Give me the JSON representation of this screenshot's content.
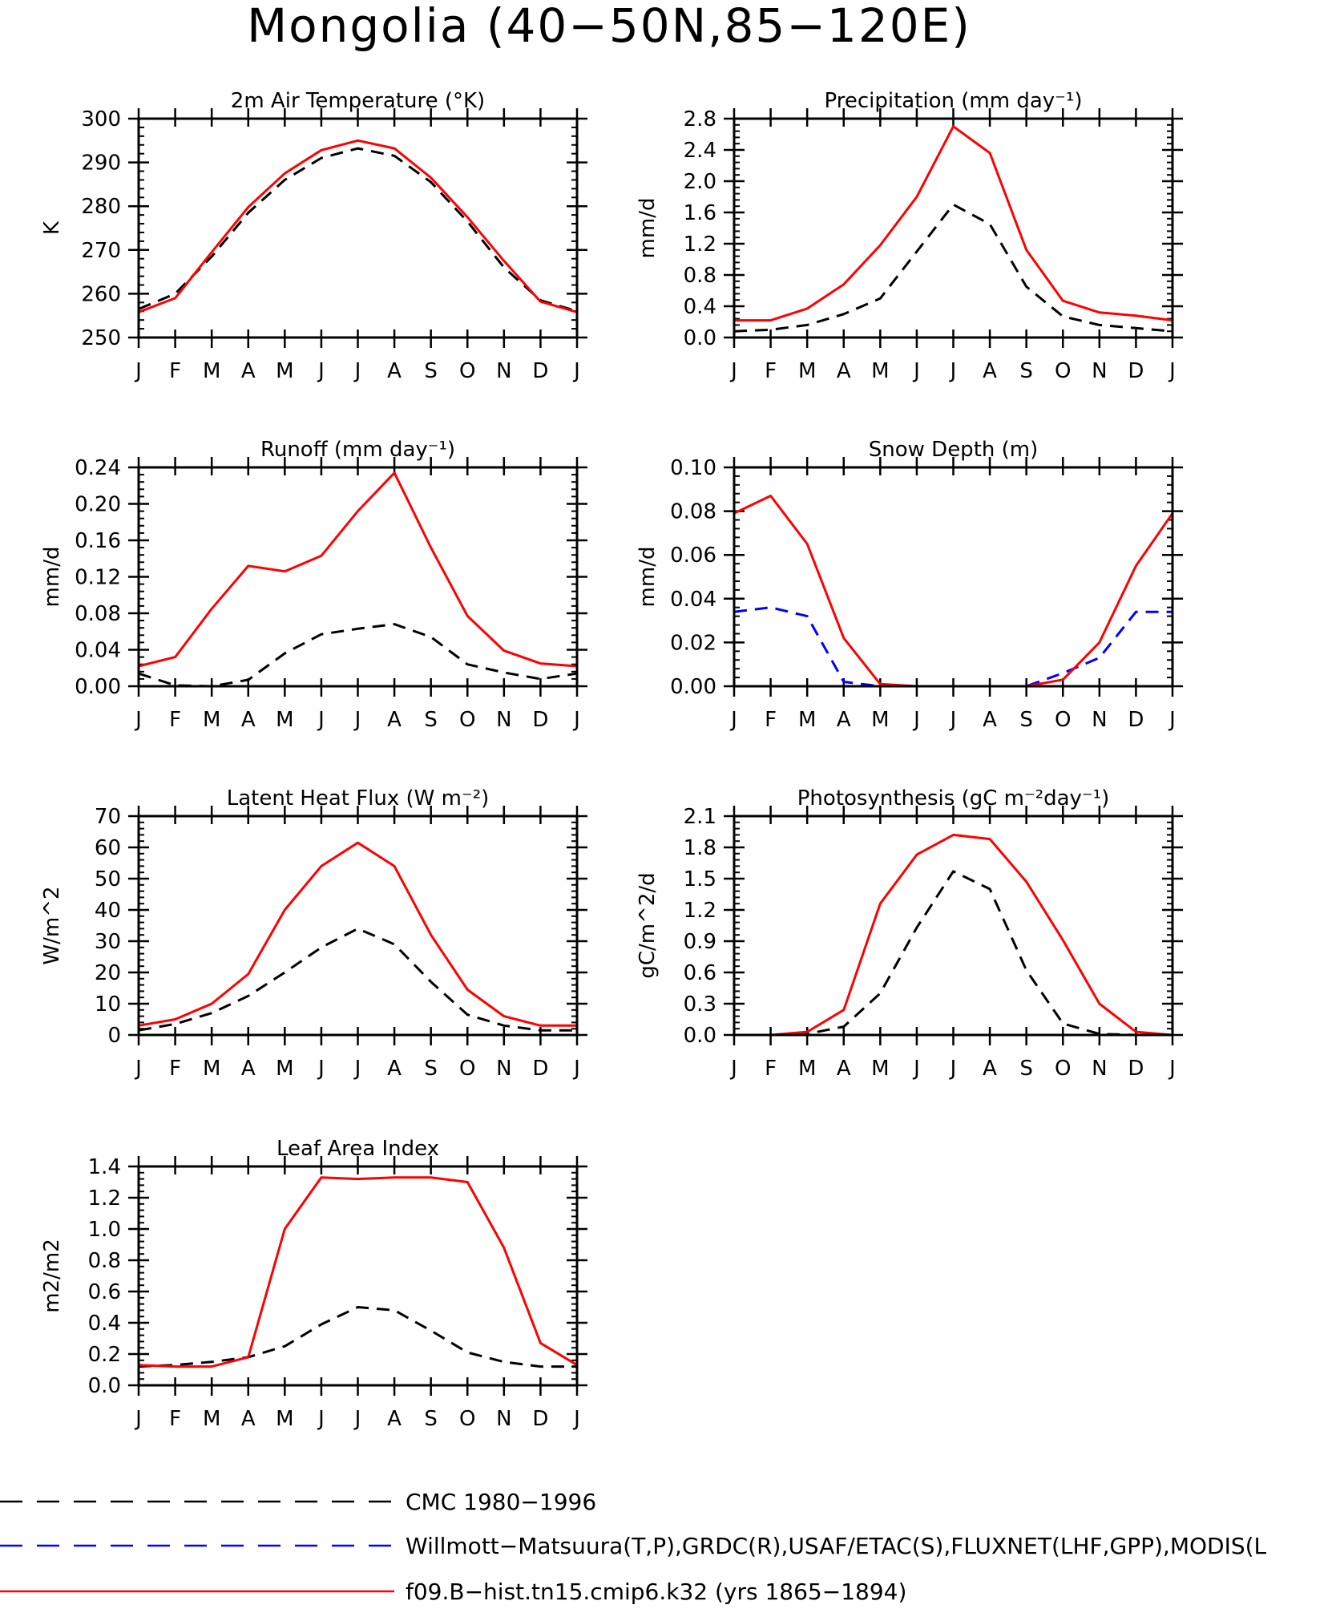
{
  "page": {
    "title": "Mongolia (40−50N,85−120E)"
  },
  "months": [
    "J",
    "F",
    "M",
    "A",
    "M",
    "J",
    "J",
    "A",
    "S",
    "O",
    "N",
    "D",
    "J"
  ],
  "colors": {
    "obs": "#000000",
    "obs2": "#0000ff",
    "model": "#ff0000"
  },
  "legend": {
    "entries": [
      {
        "label": "CMC 1980−1996",
        "color": "#000000",
        "style": "dashed"
      },
      {
        "label": "Willmott−Matsuura(T,P),GRDC(R),USAF/ETAC(S),FLUXNET(LHF,GPP),MODIS(L",
        "color": "#0000ff",
        "style": "dashed"
      },
      {
        "label": "f09.B−hist.tn15.cmip6.k32 (yrs 1865−1894)",
        "color": "#ff0000",
        "style": "solid"
      }
    ]
  },
  "chart_data": [
    {
      "type": "line",
      "title": "2m Air Temperature (°K)",
      "ylabel": "K",
      "ylim": [
        250,
        300
      ],
      "yticks": [
        250,
        260,
        270,
        280,
        290,
        300
      ],
      "ytick_labels": [
        "250",
        "260",
        "270",
        "280",
        "290",
        "300"
      ],
      "series": [
        {
          "role": "obs",
          "color": "#000000",
          "style": "dashed",
          "values": [
            256.5,
            260,
            268.5,
            278.5,
            286,
            291,
            293.2,
            291.5,
            285.5,
            276.5,
            266,
            258.5,
            256
          ]
        },
        {
          "role": "model",
          "color": "#ff0000",
          "style": "solid",
          "values": [
            255.8,
            259,
            269.5,
            279.8,
            287.5,
            292.8,
            295,
            293.2,
            286.5,
            277.5,
            267.5,
            258.2,
            255.8
          ]
        }
      ]
    },
    {
      "type": "line",
      "title": "Precipitation (mm day⁻¹)",
      "ylabel": "mm/d",
      "ylim": [
        0,
        2.8
      ],
      "yticks": [
        0,
        0.4,
        0.8,
        1.2,
        1.6,
        2.0,
        2.4,
        2.8
      ],
      "ytick_labels": [
        "0.0",
        "0.4",
        "0.8",
        "1.2",
        "1.6",
        "2.0",
        "2.4",
        "2.8"
      ],
      "series": [
        {
          "role": "obs",
          "color": "#000000",
          "style": "dashed",
          "values": [
            0.08,
            0.1,
            0.16,
            0.3,
            0.5,
            1.1,
            1.7,
            1.45,
            0.65,
            0.27,
            0.16,
            0.12,
            0.08
          ]
        },
        {
          "role": "model",
          "color": "#ff0000",
          "style": "solid",
          "values": [
            0.22,
            0.22,
            0.37,
            0.68,
            1.18,
            1.8,
            2.7,
            2.36,
            1.12,
            0.47,
            0.32,
            0.28,
            0.22
          ]
        }
      ]
    },
    {
      "type": "line",
      "title": "Runoff (mm day⁻¹)",
      "ylabel": "mm/d",
      "ylim": [
        0,
        0.24
      ],
      "yticks": [
        0,
        0.04,
        0.08,
        0.12,
        0.16,
        0.2,
        0.24
      ],
      "ytick_labels": [
        "0.00",
        "0.04",
        "0.08",
        "0.12",
        "0.16",
        "0.20",
        "0.24"
      ],
      "series": [
        {
          "role": "obs",
          "color": "#000000",
          "style": "dashed",
          "values": [
            0.014,
            0.001,
            0.0,
            0.007,
            0.036,
            0.057,
            0.063,
            0.068,
            0.054,
            0.024,
            0.015,
            0.008,
            0.014
          ]
        },
        {
          "role": "model",
          "color": "#ff0000",
          "style": "solid",
          "values": [
            0.022,
            0.032,
            0.085,
            0.132,
            0.126,
            0.143,
            0.192,
            0.234,
            0.152,
            0.077,
            0.039,
            0.025,
            0.022
          ]
        }
      ]
    },
    {
      "type": "line",
      "title": "Snow Depth (m)",
      "ylabel": "mm/d",
      "ylim": [
        0,
        0.1
      ],
      "yticks": [
        0,
        0.02,
        0.04,
        0.06,
        0.08,
        0.1
      ],
      "ytick_labels": [
        "0.00",
        "0.02",
        "0.04",
        "0.06",
        "0.08",
        "0.10"
      ],
      "series": [
        {
          "role": "obs",
          "color": "#000000",
          "style": "dashed",
          "values": [
            0,
            0,
            0,
            0,
            0,
            0,
            0,
            0,
            0,
            0,
            0,
            0,
            0
          ]
        },
        {
          "role": "obs2",
          "color": "#0000ff",
          "style": "dashed",
          "values": [
            0.034,
            0.036,
            0.032,
            0.002,
            0.0,
            0.0,
            0.0,
            0.0,
            0.0,
            0.006,
            0.013,
            0.034,
            0.034
          ]
        },
        {
          "role": "model",
          "color": "#ff0000",
          "style": "solid",
          "values": [
            0.079,
            0.087,
            0.065,
            0.022,
            0.001,
            0.0,
            0.0,
            0.0,
            0.0,
            0.003,
            0.02,
            0.055,
            0.079
          ]
        }
      ]
    },
    {
      "type": "line",
      "title": "Latent Heat Flux (W m⁻²)",
      "ylabel": "W/m^2",
      "ylim": [
        0,
        70
      ],
      "yticks": [
        0,
        10,
        20,
        30,
        40,
        50,
        60,
        70
      ],
      "ytick_labels": [
        "0",
        "10",
        "20",
        "30",
        "40",
        "50",
        "60",
        "70"
      ],
      "series": [
        {
          "role": "obs",
          "color": "#000000",
          "style": "dashed",
          "values": [
            1.5,
            3.5,
            7,
            12.5,
            20,
            28,
            34,
            29,
            17,
            6.5,
            3,
            1.5,
            1.5
          ]
        },
        {
          "role": "model",
          "color": "#ff0000",
          "style": "solid",
          "values": [
            3,
            5,
            10,
            19.5,
            40,
            54,
            61.5,
            54,
            32,
            14.5,
            6,
            3,
            3
          ]
        }
      ]
    },
    {
      "type": "line",
      "title": "Photosynthesis (gC m⁻²day⁻¹)",
      "ylabel": "gC/m^2/d",
      "ylim": [
        0,
        2.1
      ],
      "yticks": [
        0,
        0.3,
        0.6,
        0.9,
        1.2,
        1.5,
        1.8,
        2.1
      ],
      "ytick_labels": [
        "0.0",
        "0.3",
        "0.6",
        "0.9",
        "1.2",
        "1.5",
        "1.8",
        "2.1"
      ],
      "series": [
        {
          "role": "obs",
          "color": "#000000",
          "style": "dashed",
          "values": [
            0.0,
            0.0,
            0.01,
            0.08,
            0.4,
            1.03,
            1.57,
            1.4,
            0.62,
            0.11,
            0.01,
            0.0,
            0.0
          ]
        },
        {
          "role": "model",
          "color": "#ff0000",
          "style": "solid",
          "values": [
            0.0,
            0.0,
            0.03,
            0.24,
            1.26,
            1.73,
            1.92,
            1.88,
            1.47,
            0.91,
            0.3,
            0.03,
            0.0
          ]
        }
      ]
    },
    {
      "type": "line",
      "title": "Leaf Area Index",
      "ylabel": "m2/m2",
      "ylim": [
        0,
        1.4
      ],
      "yticks": [
        0,
        0.2,
        0.4,
        0.6,
        0.8,
        1.0,
        1.2,
        1.4
      ],
      "ytick_labels": [
        "0.0",
        "0.2",
        "0.4",
        "0.6",
        "0.8",
        "1.0",
        "1.2",
        "1.4"
      ],
      "series": [
        {
          "role": "obs",
          "color": "#000000",
          "style": "dashed",
          "values": [
            0.12,
            0.13,
            0.15,
            0.18,
            0.25,
            0.39,
            0.5,
            0.48,
            0.35,
            0.21,
            0.15,
            0.12,
            0.12
          ]
        },
        {
          "role": "model",
          "color": "#ff0000",
          "style": "solid",
          "values": [
            0.13,
            0.12,
            0.12,
            0.18,
            1.0,
            1.33,
            1.32,
            1.33,
            1.33,
            1.3,
            0.88,
            0.27,
            0.13
          ]
        }
      ]
    }
  ]
}
